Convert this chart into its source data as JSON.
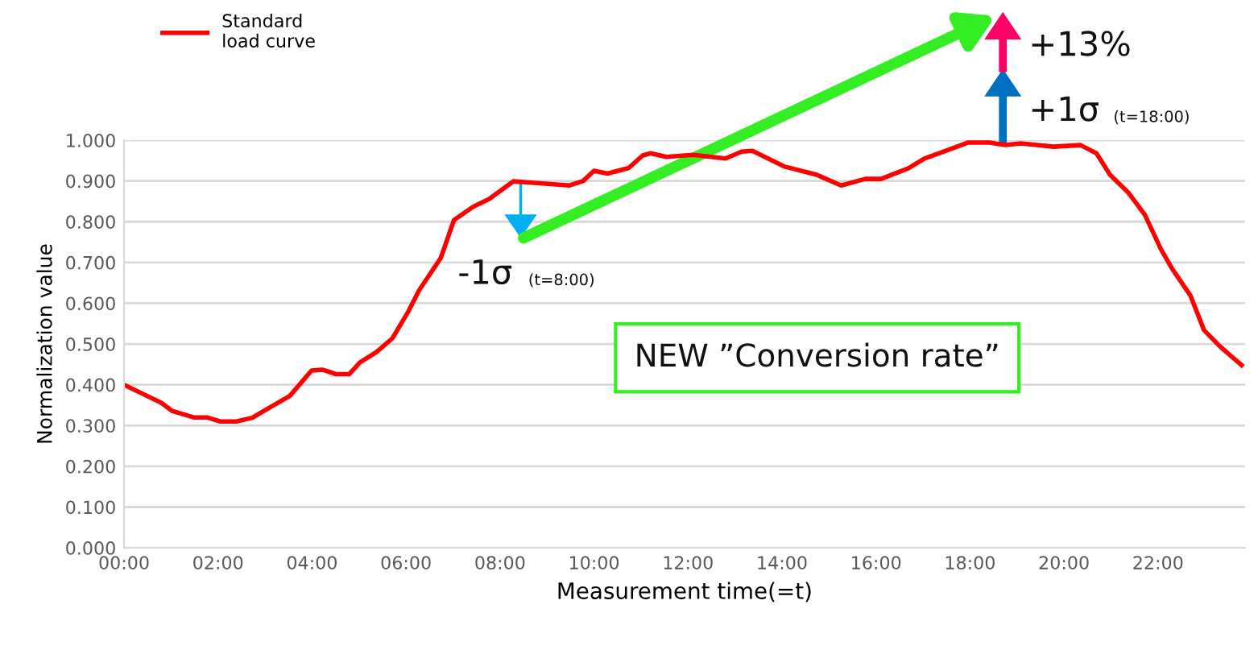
{
  "chart_data": {
    "type": "line",
    "xlabel": "Measurement time(=t)",
    "ylabel": "Normalization value",
    "x": [
      0,
      0.79,
      1.02,
      1.48,
      1.76,
      2.05,
      2.39,
      2.73,
      3.08,
      3.53,
      3.99,
      4.22,
      4.51,
      4.79,
      5.02,
      5.37,
      5.71,
      6.05,
      6.28,
      6.74,
      7.02,
      7.42,
      7.77,
      8.28,
      8.79,
      9.48,
      9.77,
      10.0,
      10.29,
      10.74,
      11.03,
      11.2,
      11.54,
      12.11,
      12.8,
      13.14,
      13.37,
      14.06,
      14.74,
      15.26,
      15.77,
      16.11,
      16.69,
      17.03,
      17.49,
      17.95,
      18.41,
      18.75,
      19.09,
      19.78,
      20.35,
      20.69,
      20.98,
      21.38,
      21.72,
      22.07,
      22.3,
      22.69,
      22.98,
      23.32,
      23.78
    ],
    "series": [
      {
        "name": "Standard\nload curve",
        "color": "#ff0000",
        "values": [
          0.4,
          0.356,
          0.336,
          0.32,
          0.32,
          0.31,
          0.31,
          0.319,
          0.343,
          0.373,
          0.435,
          0.437,
          0.426,
          0.426,
          0.455,
          0.48,
          0.514,
          0.58,
          0.632,
          0.711,
          0.804,
          0.836,
          0.856,
          0.899,
          0.895,
          0.889,
          0.9,
          0.925,
          0.918,
          0.932,
          0.962,
          0.968,
          0.959,
          0.964,
          0.955,
          0.972,
          0.974,
          0.935,
          0.915,
          0.889,
          0.905,
          0.905,
          0.931,
          0.955,
          0.974,
          0.994,
          0.994,
          0.988,
          0.992,
          0.984,
          0.988,
          0.968,
          0.915,
          0.87,
          0.817,
          0.731,
          0.685,
          0.619,
          0.534,
          0.494,
          0.448
        ]
      }
    ],
    "xlim": [
      0,
      23.85
    ],
    "xticks": [
      {
        "value": 0,
        "label": "00:00"
      },
      {
        "value": 2,
        "label": "02:00"
      },
      {
        "value": 4,
        "label": "04:00"
      },
      {
        "value": 6,
        "label": "06:00"
      },
      {
        "value": 8,
        "label": "08:00"
      },
      {
        "value": 10,
        "label": "10:00"
      },
      {
        "value": 12,
        "label": "12:00"
      },
      {
        "value": 14,
        "label": "14:00"
      },
      {
        "value": 16,
        "label": "16:00"
      },
      {
        "value": 18,
        "label": "18:00"
      },
      {
        "value": 20,
        "label": "20:00"
      },
      {
        "value": 22,
        "label": "22:00"
      }
    ],
    "ylim": [
      0,
      1.0
    ],
    "yticks": [
      {
        "value": 0,
        "label": "0.000"
      },
      {
        "value": 0.1,
        "label": "0.100"
      },
      {
        "value": 0.2,
        "label": "0.200"
      },
      {
        "value": 0.3,
        "label": "0.300"
      },
      {
        "value": 0.4,
        "label": "0.400"
      },
      {
        "value": 0.5,
        "label": "0.500"
      },
      {
        "value": 0.6,
        "label": "0.600"
      },
      {
        "value": 0.7,
        "label": "0.700"
      },
      {
        "value": 0.8,
        "label": "0.800"
      },
      {
        "value": 0.9,
        "label": "0.900"
      },
      {
        "value": 1.0,
        "label": "1.000"
      }
    ],
    "grid": "y",
    "legend": "top left",
    "marker": "none",
    "line_style": "solid",
    "annotations": [
      "-1σ",
      "(t=8:00)",
      "+1σ",
      "(t=18:00)",
      "+13%",
      "NEW ”Conversion rate”"
    ]
  }
}
